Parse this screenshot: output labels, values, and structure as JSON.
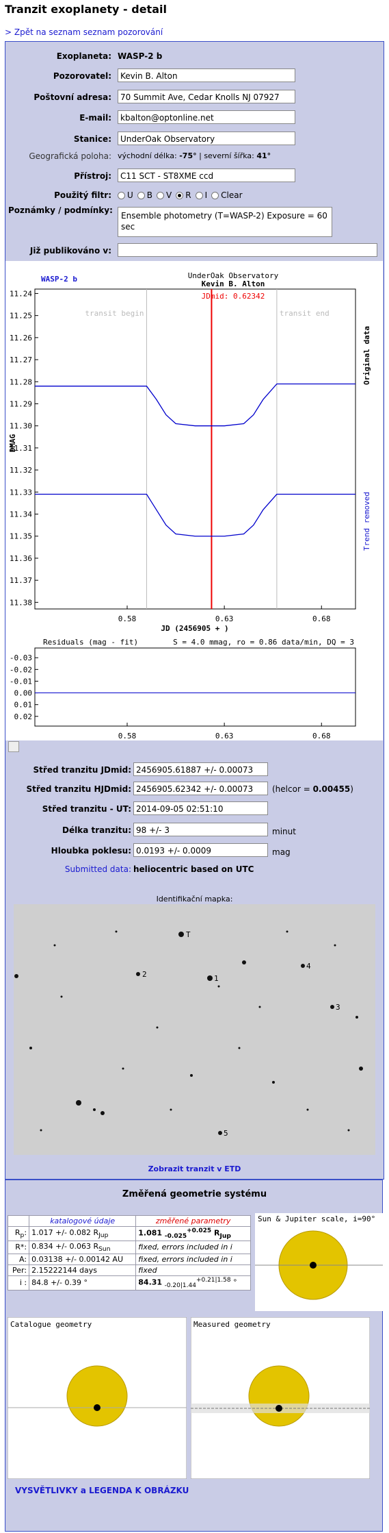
{
  "header": {
    "title": "Tranzit exoplanety - detail",
    "back_link": "> Zpět na seznam seznam pozorování"
  },
  "form": {
    "exoplanet": {
      "label": "Exoplaneta:",
      "value": "WASP-2 b"
    },
    "observer": {
      "label": "Pozorovatel:",
      "value": "Kevin B. Alton"
    },
    "address": {
      "label": "Poštovní adresa:",
      "value": "70 Summit Ave, Cedar Knolls NJ 07927"
    },
    "email": {
      "label": "E-mail:",
      "value": "kbalton@optonline.net"
    },
    "station": {
      "label": "Stanice:",
      "value": "UnderOak Observatory"
    },
    "location": {
      "label": "Geografická poloha:",
      "lon_label": "východní délka:",
      "lon": "-75°",
      "separator": "|",
      "lat_label": "severní šířka:",
      "lat": "41°"
    },
    "instrument": {
      "label": "Přístroj:",
      "value": "C11 SCT - ST8XME ccd"
    },
    "filter": {
      "label": "Použitý filtr:",
      "options": [
        "U",
        "B",
        "V",
        "R",
        "I",
        "Clear"
      ],
      "selected": "R"
    },
    "notes": {
      "label": "Poznámky / podmínky:",
      "value": "Ensemble photometry (T=WASP-2) Exposure = 60 sec"
    },
    "published": {
      "label": "Již publikováno v:"
    }
  },
  "light_curve": {
    "type": "line",
    "title": "WASP-2 b",
    "observatory": "UnderOak Observatory",
    "observer": "Kevin B. Alton",
    "jdmid_label": "JDmid: 0.62342",
    "jdmid": 0.62342,
    "transit_begin_label": "transit begin",
    "transit_begin": 0.59,
    "transit_end_label": "transit end",
    "transit_end": 0.657,
    "ylabel": "DMAG",
    "xlabel": "JD (2456905 + )",
    "original_label": "Original data",
    "trend_label": "Trend removed",
    "xlim": [
      0.5325,
      0.6975
    ],
    "xticks": [
      0.58,
      0.63,
      0.68
    ],
    "ylim": [
      11.238,
      11.383
    ],
    "yticks": [
      {
        "value": 11.24,
        "label": "11.24"
      },
      {
        "value": 11.25,
        "label": "11.25"
      },
      {
        "value": 11.26,
        "label": "11.26"
      },
      {
        "value": 11.27,
        "label": "11.27"
      },
      {
        "value": 11.28,
        "label": "11.28"
      },
      {
        "value": 11.29,
        "label": "11.29"
      },
      {
        "value": 11.3,
        "label": "11.30"
      },
      {
        "value": 11.31,
        "label": "11.31"
      },
      {
        "value": 11.32,
        "label": "11.32"
      },
      {
        "value": 11.33,
        "label": "11.33"
      },
      {
        "value": 11.34,
        "label": "11.34"
      },
      {
        "value": 11.35,
        "label": "11.35"
      },
      {
        "value": 11.36,
        "label": "11.36"
      },
      {
        "value": 11.37,
        "label": "11.37"
      },
      {
        "value": 11.38,
        "label": "11.38"
      }
    ],
    "series": [
      {
        "name": "Original data",
        "color": "#0000cc",
        "x": [
          0.5325,
          0.59,
          0.595,
          0.6,
          0.605,
          0.615,
          0.63,
          0.64,
          0.645,
          0.65,
          0.657,
          0.6975
        ],
        "values": [
          11.282,
          11.282,
          11.288,
          11.295,
          11.299,
          11.3,
          11.3,
          11.299,
          11.295,
          11.288,
          11.281,
          11.281
        ]
      },
      {
        "name": "Trend removed",
        "color": "#0000cc",
        "x": [
          0.5325,
          0.59,
          0.595,
          0.6,
          0.605,
          0.615,
          0.63,
          0.64,
          0.645,
          0.65,
          0.657,
          0.6975
        ],
        "values": [
          11.331,
          11.331,
          11.338,
          11.345,
          11.349,
          11.35,
          11.35,
          11.349,
          11.345,
          11.338,
          11.331,
          11.331
        ]
      }
    ],
    "residuals": {
      "title": "Residuals (mag - fit)",
      "stats": "S = 4.0 mmag, ro = 0.86 data/min, DQ = 3",
      "ylim": [
        -0.0383,
        0.0283
      ],
      "yticks": [
        {
          "value": -0.03,
          "label": "-0.03"
        },
        {
          "value": -0.02,
          "label": "-0.02"
        },
        {
          "value": -0.01,
          "label": "-0.01"
        },
        {
          "value": 0,
          "label": "0.00"
        },
        {
          "value": 0.01,
          "label": "0.01"
        },
        {
          "value": 0.02,
          "label": "0.02"
        }
      ],
      "fit": {
        "x": [
          0.5325,
          0.6975
        ],
        "values": [
          0,
          0
        ]
      },
      "xticks": [
        0.58,
        0.63,
        0.68
      ]
    }
  },
  "results": {
    "jdmid": {
      "label": "Střed tranzitu JDmid:",
      "value": "2456905.61887 +/- 0.00073"
    },
    "hjdmid": {
      "label": "Střed tranzitu HJDmid:",
      "value": "2456905.62342 +/- 0.00073",
      "helcor_label": "(helcor =",
      "helcor": "0.00455",
      "helcor_close": ")"
    },
    "ut": {
      "label": "Střed tranzitu - UT:",
      "value": "2014-09-05 02:51:10"
    },
    "duration": {
      "label": "Délka tranzitu:",
      "value": "98 +/- 3",
      "unit": "minut"
    },
    "depth": {
      "label": "Hloubka poklesu:",
      "value": "0.0193 +/- 0.0009",
      "unit": "mag"
    },
    "submitted": {
      "label": "Submitted data:",
      "value": "heliocentric based on UTC"
    }
  },
  "map": {
    "title": "Identifikační mapka:",
    "labels": [
      "T",
      "2",
      "1",
      "4",
      "3",
      "5"
    ],
    "link": "Zobrazit tranzit v ETD"
  },
  "geometry": {
    "title": "Změřená geometrie systému",
    "col_catalogue": "katalogové údaje",
    "col_measured": "změřené parametry",
    "rows": [
      {
        "name": "R",
        "name_sub": "p",
        "catalogue": "1.017 +/- 0.082 R",
        "catalogue_sub": "Jup",
        "measured": "1.081",
        "m_minus": "-0.025",
        "m_plus": "+0.025",
        "m_unit": "R",
        "m_unit_sub": "Jup"
      },
      {
        "name": "R*:",
        "catalogue": "0.834 +/- 0.063 R",
        "catalogue_sub": "Sun",
        "measured_text": "fixed, errors included in i"
      },
      {
        "name": "A:",
        "catalogue": "0.03138 +/- 0.00142 AU",
        "measured_text": "fixed, errors included in i"
      },
      {
        "name": "Per:",
        "catalogue": "2.15222144 days",
        "measured_text": "fixed"
      },
      {
        "name": "i :",
        "catalogue": "84.8 +/- 0.39 °",
        "measured": "84.31",
        "m_minus": "-0.20|1.44",
        "m_plus": "+0.21|1.58",
        "m_unit": "°"
      }
    ],
    "scale_title": "Sun & Jupiter scale, i=90°",
    "catalogue_geometry": "Catalogue geometry",
    "measured_geometry": "Measured geometry",
    "legend_link": "VYSVĚTLIVKY a LEGENDA K OBRÁZKU"
  }
}
